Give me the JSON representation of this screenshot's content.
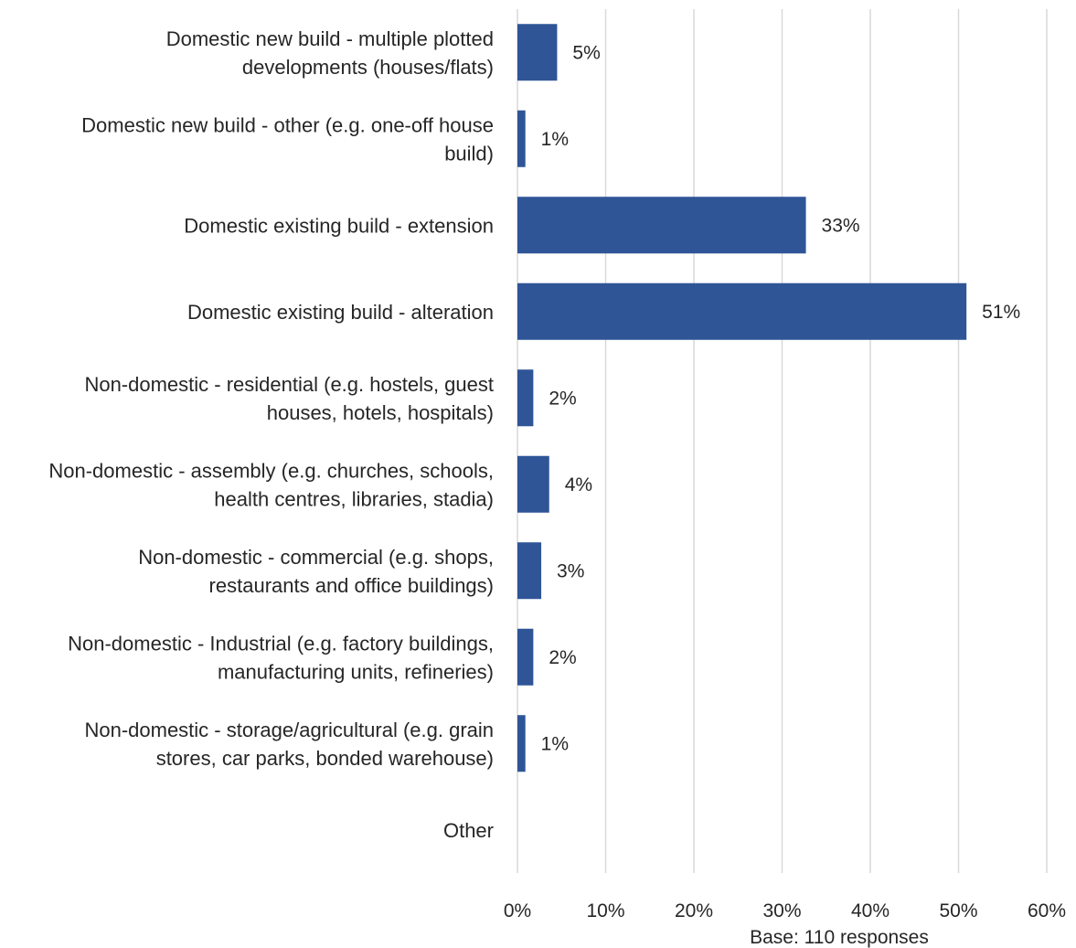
{
  "chart_data": {
    "type": "bar",
    "orientation": "horizontal",
    "categories": [
      [
        "Domestic new build - multiple plotted",
        "developments (houses/flats)"
      ],
      [
        "Domestic new build - other (e.g. one-off house",
        "build)"
      ],
      [
        "Domestic existing build - extension"
      ],
      [
        "Domestic existing build - alteration"
      ],
      [
        "Non-domestic - residential (e.g. hostels, guest",
        "houses, hotels, hospitals)"
      ],
      [
        "Non-domestic - assembly (e.g. churches, schools,",
        "health centres, libraries, stadia)"
      ],
      [
        "Non-domestic - commercial (e.g. shops,",
        "restaurants and office buildings)"
      ],
      [
        "Non-domestic - Industrial (e.g. factory buildings,",
        "manufacturing units, refineries)"
      ],
      [
        "Non-domestic - storage/agricultural (e.g. grain",
        "stores, car parks, bonded warehouse)"
      ],
      [
        "Other"
      ]
    ],
    "values": [
      4.5,
      0.9,
      32.7,
      50.9,
      1.8,
      3.6,
      2.7,
      1.8,
      0.9,
      null
    ],
    "data_labels": [
      "5%",
      "1%",
      "33%",
      "51%",
      "2%",
      "4%",
      "3%",
      "2%",
      "1%",
      ""
    ],
    "x_ticks": [
      "0%",
      "10%",
      "20%",
      "30%",
      "40%",
      "50%",
      "60%"
    ],
    "xlim": [
      0,
      60
    ],
    "grid": true,
    "bar_color": "#2F5597",
    "grid_color": "#D9D9D9",
    "text_color": "#262626",
    "note": "Base: 110 responses"
  }
}
